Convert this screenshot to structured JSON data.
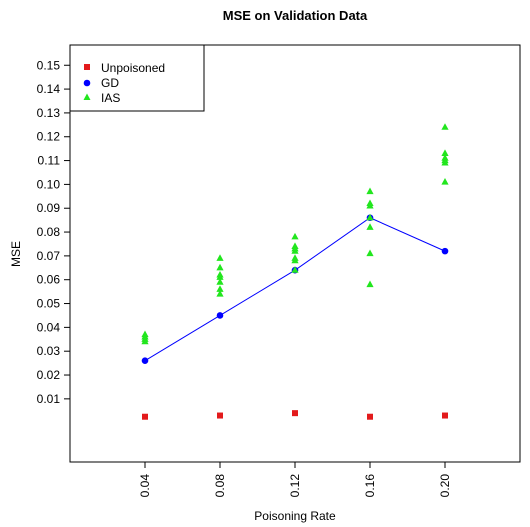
{
  "chart_data": {
    "type": "scatter",
    "title": "MSE on Validation Data",
    "xlabel": "Poisoning Rate",
    "ylabel": "MSE",
    "x": [
      0.04,
      0.08,
      0.12,
      0.16,
      0.2
    ],
    "xticklabels": [
      "0.04",
      "0.08",
      "0.12",
      "0.16",
      "0.20"
    ],
    "xlim": [
      0.0,
      0.24
    ],
    "yticks": [
      0.01,
      0.02,
      0.03,
      0.04,
      0.05,
      0.06,
      0.07,
      0.08,
      0.09,
      0.1,
      0.11,
      0.12,
      0.13,
      0.14,
      0.15
    ],
    "yticklabels": [
      "0.01",
      "0.02",
      "0.03",
      "0.04",
      "0.05",
      "0.06",
      "0.07",
      "0.08",
      "0.09",
      "0.10",
      "0.11",
      "0.12",
      "0.13",
      "0.14",
      "0.15"
    ],
    "ylim": [
      -0.0165,
      0.1585
    ],
    "grid": false,
    "legend_position": "top-left",
    "series": [
      {
        "name": "Unpoisoned",
        "marker": "square",
        "color": "#e31a1c",
        "line": false,
        "points": [
          [
            0.04,
            0.0025
          ],
          [
            0.08,
            0.003
          ],
          [
            0.12,
            0.004
          ],
          [
            0.16,
            0.0025
          ],
          [
            0.2,
            0.003
          ]
        ]
      },
      {
        "name": "GD",
        "marker": "circle",
        "color": "#0000ff",
        "line": true,
        "points": [
          [
            0.04,
            0.026
          ],
          [
            0.08,
            0.045
          ],
          [
            0.12,
            0.064
          ],
          [
            0.16,
            0.086
          ],
          [
            0.2,
            0.072
          ]
        ]
      },
      {
        "name": "IAS",
        "marker": "triangle",
        "color": "#22e61e",
        "line": false,
        "points": [
          [
            0.04,
            0.034
          ],
          [
            0.04,
            0.035
          ],
          [
            0.04,
            0.036
          ],
          [
            0.04,
            0.037
          ],
          [
            0.08,
            0.054
          ],
          [
            0.08,
            0.056
          ],
          [
            0.08,
            0.059
          ],
          [
            0.08,
            0.061
          ],
          [
            0.08,
            0.062
          ],
          [
            0.08,
            0.065
          ],
          [
            0.08,
            0.069
          ],
          [
            0.12,
            0.064
          ],
          [
            0.12,
            0.068
          ],
          [
            0.12,
            0.069
          ],
          [
            0.12,
            0.072
          ],
          [
            0.12,
            0.073
          ],
          [
            0.12,
            0.074
          ],
          [
            0.12,
            0.078
          ],
          [
            0.16,
            0.058
          ],
          [
            0.16,
            0.071
          ],
          [
            0.16,
            0.082
          ],
          [
            0.16,
            0.086
          ],
          [
            0.16,
            0.091
          ],
          [
            0.16,
            0.092
          ],
          [
            0.16,
            0.097
          ],
          [
            0.2,
            0.101
          ],
          [
            0.2,
            0.109
          ],
          [
            0.2,
            0.11
          ],
          [
            0.2,
            0.111
          ],
          [
            0.2,
            0.113
          ],
          [
            0.2,
            0.124
          ]
        ]
      }
    ]
  }
}
